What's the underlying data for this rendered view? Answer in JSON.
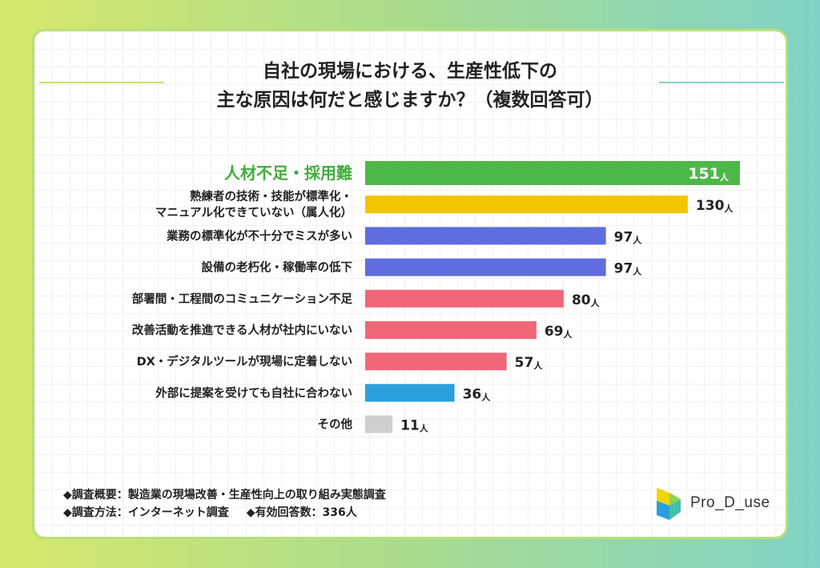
{
  "title": {
    "line1": "自社の現場における、生産性低下の",
    "line2": "主な原因は何だと感じますか？（複数回答可）"
  },
  "chart_data": {
    "type": "bar",
    "orientation": "horizontal",
    "unit": "人",
    "categories": [
      "人材不足・採用難",
      "熟練者の技術・技能が標準化・\nマニュアル化できていない（属人化）",
      "業務の標準化が不十分でミスが多い",
      "設備の老朽化・稼働率の低下",
      "部署間・工程間のコミュニケーション不足",
      "改善活動を推進できる人材が社内にいない",
      "DX・デジタルツールが現場に定着しない",
      "外部に提案を受けても自社に合わない",
      "その他"
    ],
    "values": [
      151,
      130,
      97,
      97,
      80,
      69,
      57,
      36,
      11
    ],
    "colors": [
      "#4db848",
      "#f2c500",
      "#5f6de0",
      "#5f6de0",
      "#f2667a",
      "#f2667a",
      "#f2667a",
      "#2a9fdc",
      "#cfcfcf"
    ],
    "highlight_label_color": "#3fae3a",
    "xlim": [
      0,
      151
    ]
  },
  "footer": {
    "line1": "◆調査概要：製造業の現場改善・生産性向上の取り組み実態調査",
    "line2a": "◆調査方法：インターネット調査",
    "line2b": "◆有効回答数：336人"
  },
  "logo": {
    "text": "Pro_D_use"
  }
}
